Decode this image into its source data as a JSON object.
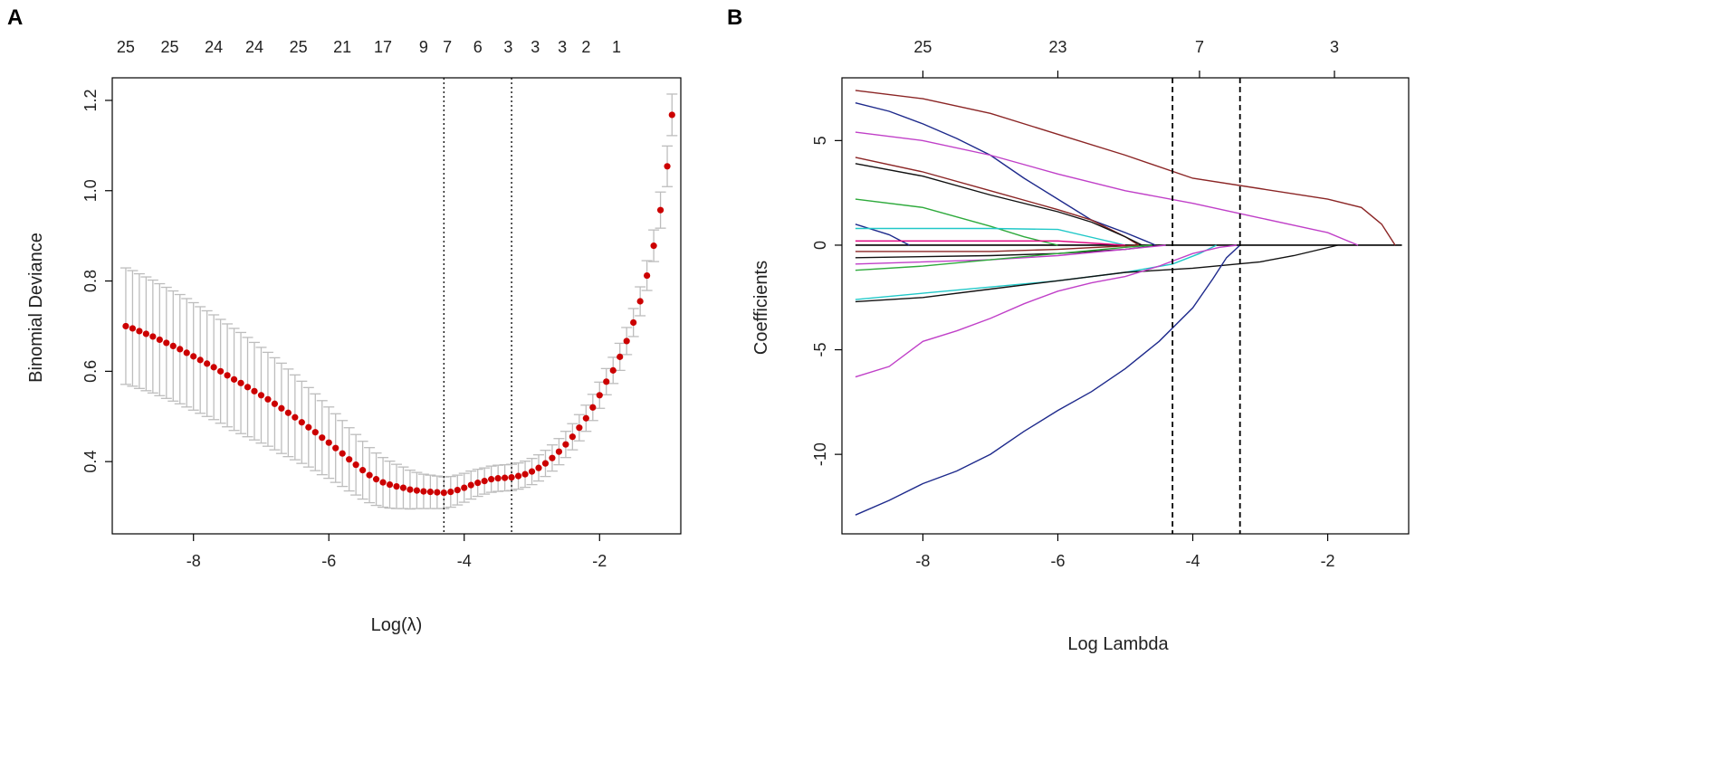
{
  "panels": {
    "a_label": "A",
    "b_label": "B"
  },
  "chart_data": [
    {
      "type": "scatter",
      "title": "",
      "xlabel": "Log(λ)",
      "ylabel": "Binomial Deviance",
      "xlim": [
        -9.2,
        -0.8
      ],
      "ylim": [
        0.24,
        1.25
      ],
      "x_ticks": [
        -8,
        -6,
        -4,
        -2
      ],
      "y_ticks": [
        0.4,
        0.6,
        0.8,
        1.0,
        1.2
      ],
      "y_tick_labels": [
        "0.4",
        "0.6",
        "0.8",
        "1.0",
        "1.2"
      ],
      "top_axis_positions": [
        -9.0,
        -8.35,
        -7.7,
        -7.1,
        -6.45,
        -5.8,
        -5.2,
        -4.6,
        -4.25,
        -3.8,
        -3.35,
        -2.95,
        -2.55,
        -2.2,
        -1.75
      ],
      "top_axis_labels": [
        "25",
        "25",
        "24",
        "24",
        "25",
        "21",
        "17",
        "9",
        "7",
        "6",
        "3",
        "3",
        "3",
        "2",
        "1"
      ],
      "vlines": [
        -4.3,
        -3.3
      ],
      "grid": false,
      "point_color": "#cc0000",
      "errorbar_color": "#bdbdbd",
      "series": [
        {
          "name": "cv deviance",
          "x": [
            -9.0,
            -8.9,
            -8.8,
            -8.7,
            -8.6,
            -8.5,
            -8.4,
            -8.3,
            -8.2,
            -8.1,
            -8.0,
            -7.9,
            -7.8,
            -7.7,
            -7.6,
            -7.5,
            -7.4,
            -7.3,
            -7.2,
            -7.1,
            -7.0,
            -6.9,
            -6.8,
            -6.7,
            -6.6,
            -6.5,
            -6.4,
            -6.3,
            -6.2,
            -6.1,
            -6.0,
            -5.9,
            -5.8,
            -5.7,
            -5.6,
            -5.5,
            -5.4,
            -5.3,
            -5.2,
            -5.1,
            -5.0,
            -4.9,
            -4.8,
            -4.7,
            -4.6,
            -4.5,
            -4.4,
            -4.3,
            -4.2,
            -4.1,
            -4.0,
            -3.9,
            -3.8,
            -3.7,
            -3.6,
            -3.5,
            -3.4,
            -3.3,
            -3.2,
            -3.1,
            -3.0,
            -2.9,
            -2.8,
            -2.7,
            -2.6,
            -2.5,
            -2.4,
            -2.3,
            -2.2,
            -2.1,
            -2.0,
            -1.9,
            -1.8,
            -1.7,
            -1.6,
            -1.5,
            -1.4,
            -1.3,
            -1.2,
            -1.1,
            -1.0
          ],
          "y": [
            0.7,
            0.695,
            0.689,
            0.683,
            0.677,
            0.67,
            0.663,
            0.656,
            0.649,
            0.641,
            0.633,
            0.625,
            0.617,
            0.609,
            0.6,
            0.591,
            0.582,
            0.574,
            0.565,
            0.556,
            0.547,
            0.538,
            0.528,
            0.518,
            0.508,
            0.498,
            0.487,
            0.476,
            0.465,
            0.453,
            0.442,
            0.43,
            0.418,
            0.405,
            0.393,
            0.381,
            0.37,
            0.361,
            0.354,
            0.349,
            0.345,
            0.342,
            0.338,
            0.336,
            0.334,
            0.333,
            0.332,
            0.331,
            0.333,
            0.337,
            0.342,
            0.348,
            0.353,
            0.357,
            0.361,
            0.363,
            0.364,
            0.365,
            0.368,
            0.372,
            0.378,
            0.386,
            0.396,
            0.408,
            0.422,
            0.438,
            0.455,
            0.475,
            0.496,
            0.52,
            0.547,
            0.577,
            0.602,
            0.632,
            0.667,
            0.708,
            0.755,
            0.812,
            0.878,
            0.957,
            1.054
          ],
          "error": [
            0.129,
            0.128,
            0.127,
            0.126,
            0.125,
            0.124,
            0.123,
            0.122,
            0.121,
            0.12,
            0.119,
            0.118,
            0.117,
            0.116,
            0.115,
            0.114,
            0.113,
            0.112,
            0.11,
            0.108,
            0.106,
            0.104,
            0.102,
            0.1,
            0.097,
            0.094,
            0.091,
            0.088,
            0.085,
            0.082,
            0.079,
            0.076,
            0.073,
            0.07,
            0.067,
            0.064,
            0.061,
            0.058,
            0.055,
            0.052,
            0.049,
            0.046,
            0.043,
            0.04,
            0.038,
            0.037,
            0.036,
            0.035,
            0.034,
            0.033,
            0.032,
            0.031,
            0.03,
            0.029,
            0.029,
            0.029,
            0.029,
            0.029,
            0.029,
            0.029,
            0.029,
            0.029,
            0.029,
            0.029,
            0.029,
            0.029,
            0.029,
            0.029,
            0.029,
            0.029,
            0.029,
            0.029,
            0.029,
            0.03,
            0.03,
            0.031,
            0.032,
            0.033,
            0.035,
            0.04,
            0.045
          ]
        },
        {
          "name": "final point",
          "x": [
            -0.93
          ],
          "y": [
            1.168
          ],
          "error": [
            0.046
          ]
        }
      ]
    },
    {
      "type": "line",
      "title": "",
      "xlabel": "Log Lambda",
      "ylabel": "Coefficients",
      "xlim": [
        -9.2,
        -0.8
      ],
      "ylim": [
        -13.8,
        8.0
      ],
      "x_ticks": [
        -8,
        -6,
        -4,
        -2
      ],
      "y_ticks": [
        -10,
        -5,
        0,
        5
      ],
      "top_axis_positions": [
        -8.0,
        -6.0,
        -3.9,
        -1.9
      ],
      "top_axis_labels": [
        "25",
        "23",
        "7",
        "3"
      ],
      "vlines": [
        -4.3,
        -3.3
      ],
      "grid": false,
      "series": [
        {
          "name": "s1",
          "color": "#8b2525",
          "x": [
            -9.0,
            -8.0,
            -7.0,
            -6.0,
            -5.0,
            -4.0,
            -3.0,
            -2.0,
            -1.5,
            -1.2,
            -1.0
          ],
          "y": [
            7.4,
            7.0,
            6.3,
            5.3,
            4.3,
            3.2,
            2.7,
            2.2,
            1.8,
            1.0,
            0.0
          ]
        },
        {
          "name": "s2",
          "color": "#1e2a8c",
          "x": [
            -9.0,
            -8.5,
            -8.0,
            -7.5,
            -7.0,
            -6.5,
            -6.0,
            -5.5,
            -5.0,
            -4.7,
            -4.55
          ],
          "y": [
            6.8,
            6.4,
            5.8,
            5.1,
            4.3,
            3.2,
            2.2,
            1.2,
            0.6,
            0.2,
            0.0
          ]
        },
        {
          "name": "s3",
          "color": "#c040c8",
          "x": [
            -9.0,
            -8.0,
            -7.0,
            -6.0,
            -5.0,
            -4.0,
            -3.0,
            -2.0,
            -1.55
          ],
          "y": [
            5.4,
            5.0,
            4.3,
            3.4,
            2.6,
            2.0,
            1.3,
            0.6,
            0.0
          ]
        },
        {
          "name": "s4",
          "color": "#8b2525",
          "x": [
            -9.0,
            -8.0,
            -7.0,
            -6.0,
            -5.5,
            -5.0,
            -4.8
          ],
          "y": [
            4.2,
            3.5,
            2.6,
            1.7,
            1.2,
            0.4,
            0.0
          ]
        },
        {
          "name": "s5",
          "color": "#111111",
          "x": [
            -9.0,
            -8.0,
            -7.0,
            -6.0,
            -5.5,
            -5.0,
            -4.75
          ],
          "y": [
            3.9,
            3.3,
            2.4,
            1.6,
            1.1,
            0.4,
            0.0
          ]
        },
        {
          "name": "s6",
          "color": "#2eaa3c",
          "x": [
            -9.0,
            -8.0,
            -7.0,
            -6.5,
            -6.0
          ],
          "y": [
            2.2,
            1.8,
            0.9,
            0.4,
            0.0
          ]
        },
        {
          "name": "s7",
          "color": "#1e2a8c",
          "x": [
            -9.0,
            -8.5,
            -8.2
          ],
          "y": [
            1.0,
            0.5,
            0.0
          ]
        },
        {
          "name": "s8",
          "color": "#20c8c8",
          "x": [
            -9.0,
            -7.0,
            -6.0,
            -5.0
          ],
          "y": [
            0.8,
            0.8,
            0.75,
            0.0
          ]
        },
        {
          "name": "s9",
          "color": "#e0007f",
          "x": [
            -9.0,
            -6.0,
            -5.0
          ],
          "y": [
            0.2,
            0.2,
            0.0
          ]
        },
        {
          "name": "s10",
          "color": "#8b2525",
          "x": [
            -9.0,
            -7.0,
            -6.0,
            -4.8
          ],
          "y": [
            -0.3,
            -0.3,
            -0.2,
            0.0
          ]
        },
        {
          "name": "s11",
          "color": "#111111",
          "x": [
            -9.0,
            -7.0,
            -6.0,
            -5.0,
            -4.5
          ],
          "y": [
            -0.6,
            -0.5,
            -0.4,
            -0.2,
            0.0
          ]
        },
        {
          "name": "s12",
          "color": "#c040c8",
          "x": [
            -9.0,
            -7.0,
            -6.0,
            -5.0,
            -4.4
          ],
          "y": [
            -0.9,
            -0.7,
            -0.5,
            -0.2,
            0.0
          ]
        },
        {
          "name": "s13",
          "color": "#2eaa3c",
          "x": [
            -9.0,
            -8.0,
            -7.0,
            -6.0,
            -5.0,
            -4.6
          ],
          "y": [
            -1.2,
            -1.0,
            -0.7,
            -0.4,
            -0.1,
            0.0
          ]
        },
        {
          "name": "s14",
          "color": "#20c8c8",
          "x": [
            -9.0,
            -8.0,
            -7.0,
            -6.0,
            -5.0,
            -4.3,
            -3.9,
            -3.65
          ],
          "y": [
            -2.6,
            -2.3,
            -2.0,
            -1.7,
            -1.3,
            -0.9,
            -0.4,
            0.0
          ]
        },
        {
          "name": "s15",
          "color": "#111111",
          "x": [
            -9.0,
            -8.0,
            -7.0,
            -6.0,
            -5.0,
            -4.0,
            -3.0,
            -2.5,
            -1.85
          ],
          "y": [
            -2.7,
            -2.5,
            -2.1,
            -1.7,
            -1.3,
            -1.1,
            -0.8,
            -0.5,
            0.0
          ]
        },
        {
          "name": "s16",
          "color": "#c040c8",
          "x": [
            -9.0,
            -8.5,
            -8.0,
            -7.5,
            -7.0,
            -6.5,
            -6.0,
            -5.5,
            -5.0,
            -4.5,
            -4.0,
            -3.6,
            -3.35
          ],
          "y": [
            -6.3,
            -5.8,
            -4.6,
            -4.1,
            -3.5,
            -2.8,
            -2.2,
            -1.8,
            -1.5,
            -1.0,
            -0.4,
            -0.1,
            0.0
          ]
        },
        {
          "name": "s17",
          "color": "#1e2a8c",
          "x": [
            -9.0,
            -8.5,
            -8.0,
            -7.5,
            -7.0,
            -6.5,
            -6.0,
            -5.5,
            -5.0,
            -4.5,
            -4.0,
            -3.7,
            -3.5,
            -3.3
          ],
          "y": [
            -12.9,
            -12.2,
            -11.4,
            -10.8,
            -10.0,
            -8.9,
            -7.9,
            -7.0,
            -5.9,
            -4.6,
            -3.0,
            -1.6,
            -0.6,
            0.0
          ]
        }
      ]
    }
  ]
}
